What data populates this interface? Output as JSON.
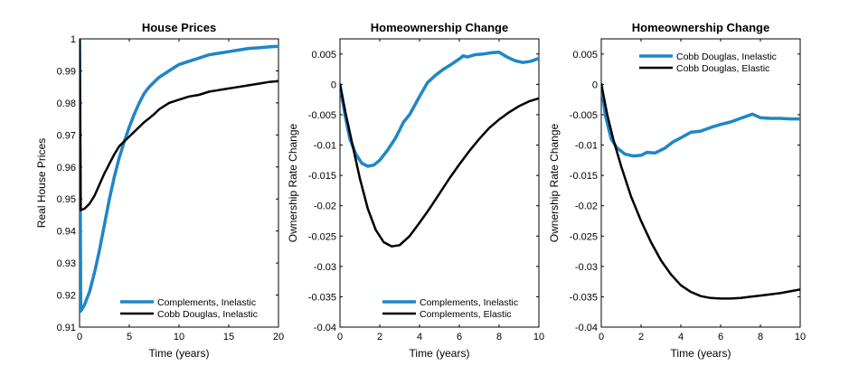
{
  "chart_data": [
    {
      "type": "line",
      "title": "House Prices",
      "xlabel": "Time (years)",
      "ylabel": "Real House Prices",
      "xlim": [
        0,
        20
      ],
      "ylim": [
        0.91,
        1.0
      ],
      "xticks": [
        0,
        5,
        10,
        15,
        20
      ],
      "xtick_labels": [
        "0",
        "5",
        "10",
        "15",
        "20"
      ],
      "yticks": [
        0.91,
        0.92,
        0.93,
        0.94,
        0.95,
        0.96,
        0.97,
        0.98,
        0.99,
        1.0
      ],
      "ytick_labels": [
        "0.91",
        "0.92",
        "0.93",
        "0.94",
        "0.95",
        "0.96",
        "0.97",
        "0.98",
        "0.99",
        "1"
      ],
      "legend_position": "bottom-right",
      "series": [
        {
          "name": "Complements, Inelastic",
          "color": "#1f86c8",
          "points": [
            [
              0,
              1.0
            ],
            [
              0.12,
              0.915
            ],
            [
              0.5,
              0.917
            ],
            [
              1,
              0.921
            ],
            [
              1.5,
              0.927
            ],
            [
              2,
              0.934
            ],
            [
              2.5,
              0.942
            ],
            [
              3,
              0.95
            ],
            [
              3.5,
              0.957
            ],
            [
              4,
              0.963
            ],
            [
              4.5,
              0.968
            ],
            [
              5,
              0.9725
            ],
            [
              5.5,
              0.9765
            ],
            [
              6,
              0.98
            ],
            [
              6.5,
              0.983
            ],
            [
              7,
              0.985
            ],
            [
              7.5,
              0.9865
            ],
            [
              8,
              0.988
            ],
            [
              8.5,
              0.989
            ],
            [
              9,
              0.99
            ],
            [
              9.5,
              0.991
            ],
            [
              10,
              0.992
            ],
            [
              11,
              0.993
            ],
            [
              12,
              0.994
            ],
            [
              13,
              0.995
            ],
            [
              14,
              0.9955
            ],
            [
              15,
              0.996
            ],
            [
              16,
              0.9965
            ],
            [
              17,
              0.997
            ],
            [
              18,
              0.9972
            ],
            [
              19,
              0.9975
            ],
            [
              20,
              0.9977
            ]
          ]
        },
        {
          "name": "Cobb Douglas, Inelastic",
          "color": "#000000",
          "points": [
            [
              0,
              1.0
            ],
            [
              0.12,
              0.9465
            ],
            [
              0.5,
              0.947
            ],
            [
              1,
              0.9485
            ],
            [
              1.5,
              0.951
            ],
            [
              2,
              0.9545
            ],
            [
              2.5,
              0.958
            ],
            [
              3,
              0.961
            ],
            [
              3.5,
              0.964
            ],
            [
              4,
              0.9665
            ],
            [
              4.5,
              0.968
            ],
            [
              5,
              0.9695
            ],
            [
              5.5,
              0.971
            ],
            [
              6,
              0.9725
            ],
            [
              6.5,
              0.974
            ],
            [
              7,
              0.9752
            ],
            [
              7.5,
              0.9765
            ],
            [
              8,
              0.978
            ],
            [
              8.5,
              0.979
            ],
            [
              9,
              0.98
            ],
            [
              10,
              0.981
            ],
            [
              11,
              0.982
            ],
            [
              12,
              0.9825
            ],
            [
              13,
              0.9835
            ],
            [
              14,
              0.984
            ],
            [
              15,
              0.9845
            ],
            [
              16,
              0.985
            ],
            [
              17,
              0.9855
            ],
            [
              18,
              0.986
            ],
            [
              19,
              0.9865
            ],
            [
              20,
              0.9868
            ]
          ]
        }
      ]
    },
    {
      "type": "line",
      "title": "Homeownership Change",
      "xlabel": "Time (years)",
      "ylabel": "Ownership Rate Change",
      "xlim": [
        0,
        10
      ],
      "ylim": [
        -0.04,
        0.0075
      ],
      "xticks": [
        0,
        2,
        4,
        6,
        8,
        10
      ],
      "xtick_labels": [
        "0",
        "2",
        "4",
        "6",
        "8",
        "10"
      ],
      "yticks": [
        -0.04,
        -0.035,
        -0.03,
        -0.025,
        -0.02,
        -0.015,
        -0.01,
        -0.005,
        0,
        0.005
      ],
      "ytick_labels": [
        "-0.04",
        "-0.035",
        "-0.03",
        "-0.025",
        "-0.02",
        "-0.015",
        "-0.01",
        "-0.005",
        "0",
        "0.005"
      ],
      "legend_position": "bottom-right",
      "series": [
        {
          "name": "Complements, Inelastic",
          "color": "#1f86c8",
          "points": [
            [
              0,
              0
            ],
            [
              0.25,
              -0.005
            ],
            [
              0.5,
              -0.009
            ],
            [
              0.8,
              -0.0115
            ],
            [
              1.1,
              -0.013
            ],
            [
              1.4,
              -0.0135
            ],
            [
              1.7,
              -0.0133
            ],
            [
              2,
              -0.0125
            ],
            [
              2.4,
              -0.0108
            ],
            [
              2.8,
              -0.0088
            ],
            [
              3.2,
              -0.0062
            ],
            [
              3.5,
              -0.005
            ],
            [
              4,
              -0.002
            ],
            [
              4.4,
              0.0003
            ],
            [
              4.8,
              0.0015
            ],
            [
              5.2,
              0.0025
            ],
            [
              5.6,
              0.0033
            ],
            [
              6,
              0.0042
            ],
            [
              6.2,
              0.0047
            ],
            [
              6.4,
              0.0045
            ],
            [
              6.8,
              0.0049
            ],
            [
              7.2,
              0.005
            ],
            [
              7.6,
              0.0052
            ],
            [
              8,
              0.0053
            ],
            [
              8.4,
              0.0045
            ],
            [
              8.8,
              0.0039
            ],
            [
              9.2,
              0.0036
            ],
            [
              9.6,
              0.0038
            ],
            [
              10,
              0.0043
            ]
          ]
        },
        {
          "name": "Complements, Elastic",
          "color": "#000000",
          "points": [
            [
              0,
              0
            ],
            [
              0.3,
              -0.005
            ],
            [
              0.6,
              -0.0095
            ],
            [
              1,
              -0.0155
            ],
            [
              1.4,
              -0.0205
            ],
            [
              1.8,
              -0.024
            ],
            [
              2.2,
              -0.026
            ],
            [
              2.6,
              -0.0267
            ],
            [
              3,
              -0.0265
            ],
            [
              3.5,
              -0.025
            ],
            [
              4,
              -0.0228
            ],
            [
              4.5,
              -0.0205
            ],
            [
              5,
              -0.018
            ],
            [
              5.5,
              -0.0155
            ],
            [
              6,
              -0.0132
            ],
            [
              6.5,
              -0.011
            ],
            [
              7,
              -0.009
            ],
            [
              7.5,
              -0.0072
            ],
            [
              8,
              -0.0058
            ],
            [
              8.5,
              -0.0046
            ],
            [
              9,
              -0.0036
            ],
            [
              9.5,
              -0.0028
            ],
            [
              10,
              -0.0023
            ]
          ]
        }
      ]
    },
    {
      "type": "line",
      "title": "Homeownership Change",
      "xlabel": "Time (years)",
      "ylabel": "Ownership Rate Change",
      "xlim": [
        0,
        10
      ],
      "ylim": [
        -0.04,
        0.0075
      ],
      "xticks": [
        0,
        2,
        4,
        6,
        8,
        10
      ],
      "xtick_labels": [
        "0",
        "2",
        "4",
        "6",
        "8",
        "10"
      ],
      "yticks": [
        -0.04,
        -0.035,
        -0.03,
        -0.025,
        -0.02,
        -0.015,
        -0.01,
        -0.005,
        0,
        0.005
      ],
      "ytick_labels": [
        "-0.04",
        "-0.035",
        "-0.03",
        "-0.025",
        "-0.02",
        "-0.015",
        "-0.01",
        "-0.005",
        "0",
        "0.005"
      ],
      "legend_position": "top-right",
      "series": [
        {
          "name": "Cobb Douglas, Inelastic",
          "color": "#1f86c8",
          "points": [
            [
              0,
              0
            ],
            [
              0.2,
              -0.005
            ],
            [
              0.5,
              -0.009
            ],
            [
              0.8,
              -0.0105
            ],
            [
              1.2,
              -0.0115
            ],
            [
              1.6,
              -0.0118
            ],
            [
              2,
              -0.0117
            ],
            [
              2.3,
              -0.0112
            ],
            [
              2.7,
              -0.0113
            ],
            [
              3.2,
              -0.0105
            ],
            [
              3.6,
              -0.0095
            ],
            [
              4,
              -0.0088
            ],
            [
              4.5,
              -0.0079
            ],
            [
              5,
              -0.0077
            ],
            [
              5.5,
              -0.0071
            ],
            [
              6,
              -0.0066
            ],
            [
              6.5,
              -0.0062
            ],
            [
              7,
              -0.0056
            ],
            [
              7.6,
              -0.0049
            ],
            [
              8,
              -0.0055
            ],
            [
              8.5,
              -0.0056
            ],
            [
              9,
              -0.0056
            ],
            [
              9.5,
              -0.0057
            ],
            [
              10,
              -0.0057
            ]
          ]
        },
        {
          "name": "Cobb Douglas, Elastic",
          "color": "#000000",
          "points": [
            [
              0,
              0
            ],
            [
              0.3,
              -0.005
            ],
            [
              0.6,
              -0.009
            ],
            [
              1,
              -0.0135
            ],
            [
              1.5,
              -0.0185
            ],
            [
              2,
              -0.0225
            ],
            [
              2.5,
              -0.026
            ],
            [
              3,
              -0.029
            ],
            [
              3.5,
              -0.0313
            ],
            [
              4,
              -0.0331
            ],
            [
              4.5,
              -0.0342
            ],
            [
              5,
              -0.0349
            ],
            [
              5.5,
              -0.0352
            ],
            [
              6,
              -0.0353
            ],
            [
              6.5,
              -0.0353
            ],
            [
              7,
              -0.0352
            ],
            [
              7.5,
              -0.035
            ],
            [
              8,
              -0.0348
            ],
            [
              8.5,
              -0.0346
            ],
            [
              9,
              -0.0344
            ],
            [
              9.5,
              -0.0341
            ],
            [
              10,
              -0.0338
            ]
          ]
        }
      ]
    }
  ]
}
